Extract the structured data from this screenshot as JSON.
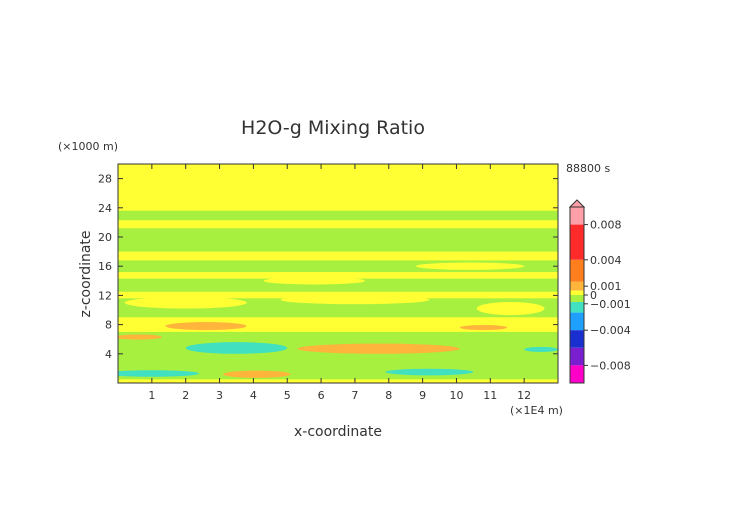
{
  "chart_data": {
    "type": "heatmap",
    "title": "H2O-g Mixing Ratio",
    "xlabel": "x-coordinate",
    "ylabel": "z-coordinate",
    "x_unit": "(×1E4 m)",
    "y_unit": "(×1000 m)",
    "time_label": "88800 s",
    "xlim": [
      0,
      13
    ],
    "ylim": [
      0,
      30
    ],
    "x_ticks": [
      1,
      2,
      3,
      4,
      5,
      6,
      7,
      8,
      9,
      10,
      11,
      12
    ],
    "y_ticks": [
      4,
      8,
      12,
      16,
      20,
      24,
      28
    ],
    "colorbar": {
      "range": [
        -0.01,
        0.01
      ],
      "tick_labels": [
        {
          "label": "0.008",
          "value": 0.008
        },
        {
          "label": "0.004",
          "value": 0.004
        },
        {
          "label": "0.001",
          "value": 0.001
        },
        {
          "label": "0",
          "value": 0
        },
        {
          "label": "−0.001",
          "value": -0.001
        },
        {
          "label": "−0.004",
          "value": -0.004
        },
        {
          "label": "−0.008",
          "value": -0.008
        }
      ],
      "colors": {
        "pos_high": "#ff9fa8",
        "pos_mid": "#ff2a2a",
        "pos_low": "#ff7f1e",
        "near_pos": "#ffb43c",
        "zero_pos": "#ffff33",
        "zero_neg": "#a8f040",
        "neg_low": "#40e0c0",
        "neg_mid": "#1fa0ff",
        "neg_high": "#1a2fd0",
        "deep_neg": "#7a1fd0",
        "deepest_neg": "#ff00c8"
      }
    },
    "regions": [
      {
        "level": "zero_pos",
        "shape": "background"
      },
      {
        "level": "zero_neg",
        "z": [
          22.3,
          23.6
        ],
        "x": [
          0,
          13
        ]
      },
      {
        "level": "zero_neg",
        "z": [
          18.0,
          21.2
        ],
        "x": [
          0,
          13
        ]
      },
      {
        "level": "zero_neg",
        "z": [
          15.2,
          16.8
        ],
        "x": [
          0,
          13
        ]
      },
      {
        "level": "zero_neg",
        "z": [
          12.5,
          14.3
        ],
        "x": [
          0,
          13
        ]
      },
      {
        "level": "zero_neg",
        "z": [
          9.0,
          11.6
        ],
        "x": [
          0,
          13
        ]
      },
      {
        "level": "zero_neg",
        "z": [
          0.5,
          7.0
        ],
        "x": [
          0,
          13
        ]
      },
      {
        "level": "near_pos",
        "center": [
          2.6,
          7.8
        ],
        "radius": [
          1.2,
          0.55
        ]
      },
      {
        "level": "near_pos",
        "center": [
          7.7,
          4.7
        ],
        "radius": [
          2.4,
          0.7
        ]
      },
      {
        "level": "near_pos",
        "center": [
          4.1,
          1.2
        ],
        "radius": [
          1.0,
          0.5
        ]
      },
      {
        "level": "near_pos",
        "center": [
          10.8,
          7.6
        ],
        "radius": [
          0.7,
          0.35
        ]
      },
      {
        "level": "near_pos",
        "center": [
          0.6,
          6.3
        ],
        "radius": [
          0.7,
          0.35
        ]
      },
      {
        "level": "neg_low",
        "center": [
          3.5,
          4.8
        ],
        "radius": [
          1.5,
          0.8
        ]
      },
      {
        "level": "neg_low",
        "center": [
          1.0,
          1.3
        ],
        "radius": [
          1.4,
          0.45
        ]
      },
      {
        "level": "neg_low",
        "center": [
          9.2,
          1.5
        ],
        "radius": [
          1.3,
          0.45
        ]
      },
      {
        "level": "neg_low",
        "center": [
          12.5,
          4.6
        ],
        "radius": [
          0.5,
          0.35
        ]
      },
      {
        "level": "zero_pos",
        "center": [
          2.0,
          11.0
        ],
        "radius": [
          1.8,
          0.8
        ]
      },
      {
        "level": "zero_pos",
        "center": [
          7.0,
          11.4
        ],
        "radius": [
          2.2,
          0.6
        ]
      },
      {
        "level": "zero_pos",
        "center": [
          11.6,
          10.2
        ],
        "radius": [
          1.0,
          0.9
        ]
      },
      {
        "level": "zero_pos",
        "center": [
          5.8,
          14.0
        ],
        "radius": [
          1.5,
          0.5
        ]
      },
      {
        "level": "zero_pos",
        "center": [
          10.4,
          16.0
        ],
        "radius": [
          1.6,
          0.5
        ]
      }
    ]
  }
}
